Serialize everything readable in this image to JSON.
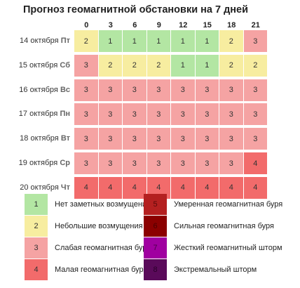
{
  "chart_data": {
    "type": "heatmap",
    "title": "Прогноз геомагнитной обстановки на 7 дней",
    "hours": [
      "0",
      "3",
      "6",
      "9",
      "12",
      "15",
      "18",
      "21"
    ],
    "days": [
      {
        "date": "14 октября",
        "dow": "Пт",
        "values": [
          2,
          1,
          1,
          1,
          1,
          1,
          2,
          3
        ]
      },
      {
        "date": "15 октября",
        "dow": "Сб",
        "values": [
          3,
          2,
          2,
          2,
          1,
          1,
          2,
          2
        ]
      },
      {
        "date": "16 октября",
        "dow": "Вс",
        "values": [
          3,
          3,
          3,
          3,
          3,
          3,
          3,
          3
        ]
      },
      {
        "date": "17 октября",
        "dow": "Пн",
        "values": [
          3,
          3,
          3,
          3,
          3,
          3,
          3,
          3
        ]
      },
      {
        "date": "18 октября",
        "dow": "Вт",
        "values": [
          3,
          3,
          3,
          3,
          3,
          3,
          3,
          3
        ]
      },
      {
        "date": "19 октября",
        "dow": "Ср",
        "values": [
          3,
          3,
          3,
          3,
          3,
          3,
          3,
          4
        ]
      },
      {
        "date": "20 октября",
        "dow": "Чт",
        "values": [
          4,
          4,
          4,
          4,
          4,
          4,
          4,
          4
        ]
      }
    ],
    "levels": [
      {
        "level": "1",
        "label": "Нет заметных возмущений",
        "color": "#b3e6a3",
        "text_color": "#333333"
      },
      {
        "level": "2",
        "label": "Небольшие возмущения",
        "color": "#f7eda0",
        "text_color": "#333333"
      },
      {
        "level": "3",
        "label": "Слабая геомагнитная буря",
        "color": "#f5a3a3",
        "text_color": "#333333"
      },
      {
        "level": "4",
        "label": "Малая геомагнитная буря",
        "color": "#f26b6b",
        "text_color": "#333333"
      },
      {
        "level": "5",
        "label": "Умеренная геомагнитная буря",
        "color": "#b42020",
        "text_color": "#5a0a0a"
      },
      {
        "level": "6",
        "label": "Сильная геомагнитная буря",
        "color": "#8b0000",
        "text_color": "#4a0000"
      },
      {
        "level": "7",
        "label": "Жесткий геомагнитный шторм",
        "color": "#a000a0",
        "text_color": "#4a004a"
      },
      {
        "level": "8",
        "label": "Экстремальный шторм",
        "color": "#5a0a5a",
        "text_color": "#2a002a"
      }
    ]
  }
}
